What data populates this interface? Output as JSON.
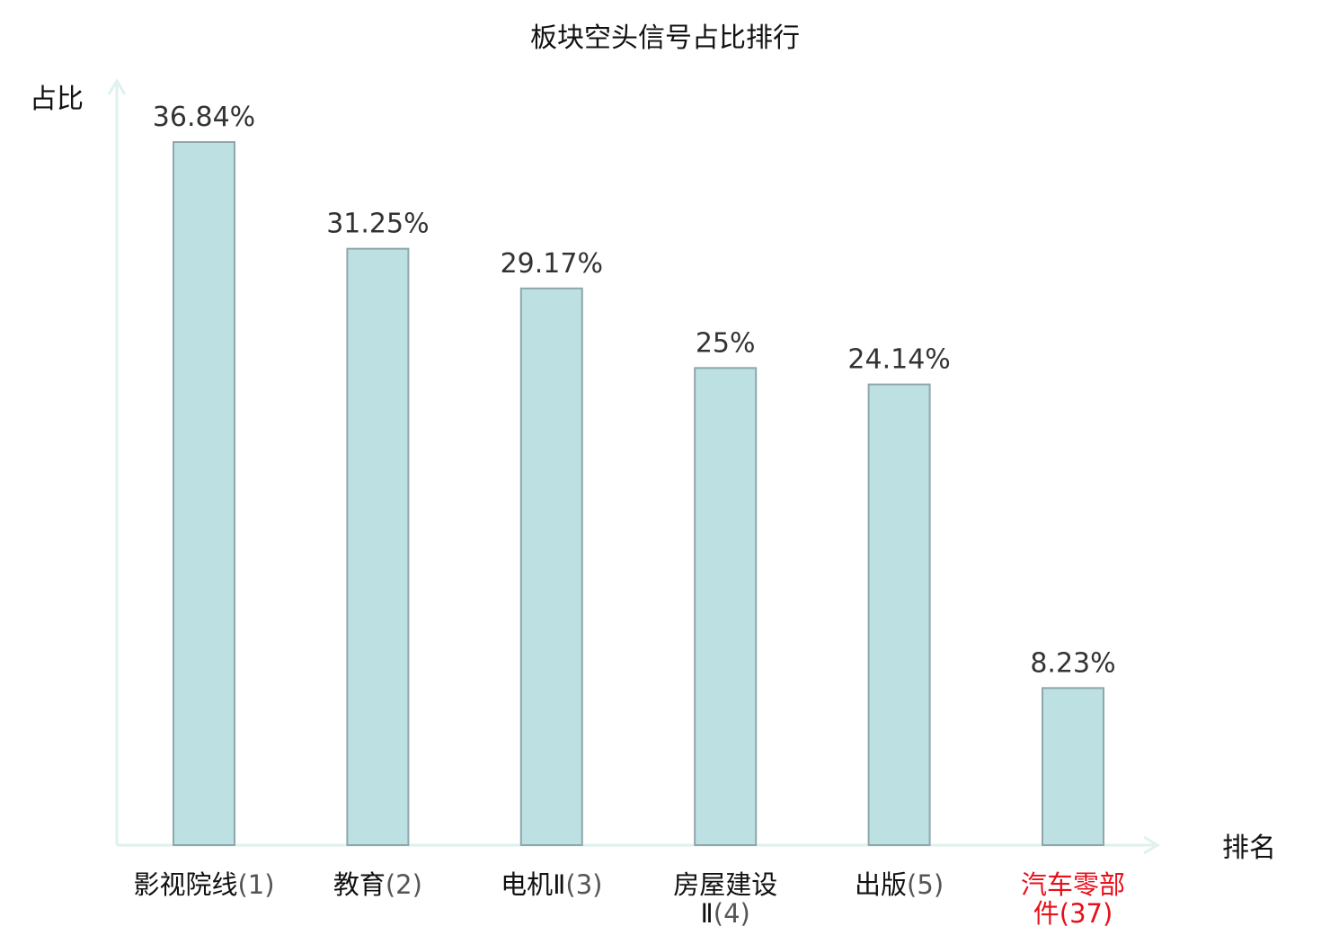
{
  "chart_data": {
    "type": "bar",
    "title": "板块空头信号占比排行",
    "ylabel": "占比",
    "xlabel": "排名",
    "ylim": [
      0,
      40
    ],
    "grid": false,
    "categories": [
      {
        "name": "影视院线",
        "rank": "(1)",
        "highlight": false
      },
      {
        "name": "教育",
        "rank": "(2)",
        "highlight": false
      },
      {
        "name": "电机Ⅱ",
        "rank": "(3)",
        "highlight": false
      },
      {
        "name": "房屋建设Ⅱ",
        "rank": "(4)",
        "highlight": false
      },
      {
        "name": "出版",
        "rank": "(5)",
        "highlight": false
      },
      {
        "name": "汽车零部件",
        "rank": "(37)",
        "highlight": true
      }
    ],
    "values": [
      36.84,
      31.25,
      29.17,
      25,
      24.14,
      8.23
    ],
    "value_labels": [
      "36.84%",
      "31.25%",
      "29.17%",
      "25%",
      "24.14%",
      "8.23%"
    ]
  },
  "colors": {
    "bar_fill": "#bde0e3",
    "bar_stroke": "#8fa7aa",
    "axis": "#dff1ee",
    "highlight": "#e8101b"
  }
}
